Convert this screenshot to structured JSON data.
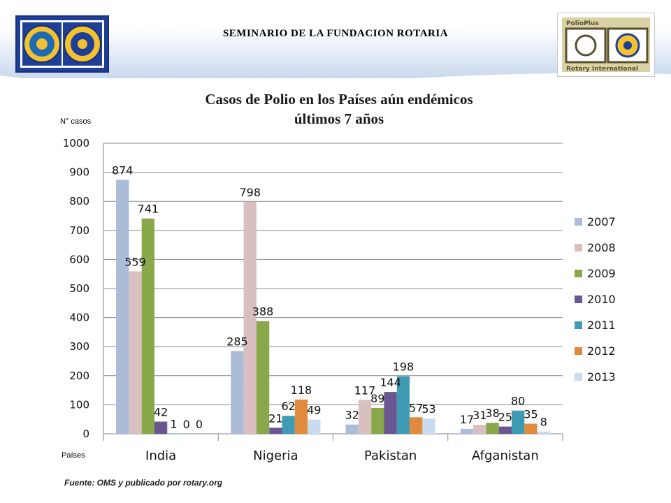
{
  "header": {
    "seminar_title": "SEMINARIO DE LA FUNDACION ROTARIA",
    "logo_left": "rotary-foundation-logo",
    "logo_right": "polioplus-rotary-international-logo",
    "logo_right_text_top": "PolioPlus",
    "logo_right_text_bottom": "Rotary International"
  },
  "notes": {
    "y_axis_note": "N° casos",
    "x_axis_note": "Países",
    "source": "Fuente: OMS y publicado por rotary.org"
  },
  "colors": {
    "2007": "#aabcd8",
    "2008": "#d9bfc0",
    "2009": "#89a74b",
    "2010": "#6a5691",
    "2011": "#3f9bb3",
    "2012": "#e08a3d",
    "2013": "#c9dbef"
  },
  "chart_data": {
    "type": "bar",
    "title": "Casos de Polio en los Países aún endémicos\núltimos 7 años",
    "xlabel": "Países",
    "ylabel": "N° casos",
    "ylim": [
      0,
      1000
    ],
    "yticks": [
      "0",
      "100",
      "200",
      "300",
      "400",
      "500",
      "600",
      "700",
      "800",
      "900",
      "1000"
    ],
    "grid": true,
    "legend": "right",
    "categories": [
      "India",
      "Nigeria",
      "Pakistan",
      "Afganistan"
    ],
    "series": [
      {
        "name": "2007",
        "values": [
          874,
          285,
          32,
          17
        ],
        "labels": [
          "874",
          "285",
          "32",
          "17"
        ]
      },
      {
        "name": "2008",
        "values": [
          559,
          798,
          117,
          31
        ],
        "labels": [
          "559",
          "798",
          "117",
          "31"
        ]
      },
      {
        "name": "2009",
        "values": [
          741,
          388,
          89,
          38
        ],
        "labels": [
          "741",
          "388",
          "89",
          "38"
        ]
      },
      {
        "name": "2010",
        "values": [
          42,
          21,
          144,
          25
        ],
        "labels": [
          "42",
          "21",
          "144",
          "25"
        ]
      },
      {
        "name": "2011",
        "values": [
          1,
          62,
          198,
          80
        ],
        "labels": [
          "1",
          "62",
          "198",
          "80"
        ]
      },
      {
        "name": "2012",
        "values": [
          0,
          118,
          57,
          35
        ],
        "labels": [
          "0",
          "118",
          "57",
          "35"
        ]
      },
      {
        "name": "2013",
        "values": [
          0,
          49,
          53,
          8
        ],
        "labels": [
          "0",
          "49",
          "53",
          "8"
        ]
      }
    ]
  }
}
